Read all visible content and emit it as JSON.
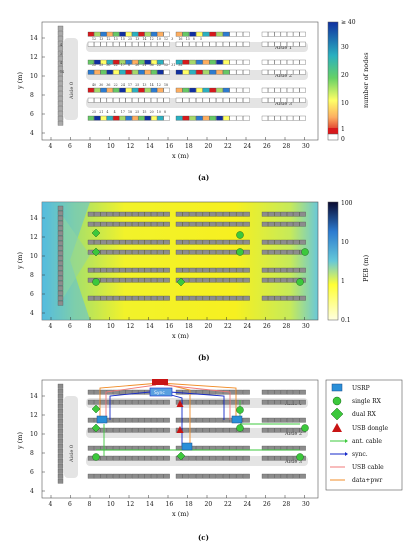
{
  "panel_a": {
    "caption": "(a)",
    "xlabel": "x (m)",
    "ylabel": "y (m)",
    "xticks": [
      "4",
      "6",
      "8",
      "10",
      "12",
      "14",
      "16",
      "18",
      "20",
      "22",
      "24",
      "26",
      "28",
      "30"
    ],
    "yticks": [
      "4",
      "6",
      "8",
      "10",
      "12",
      "14"
    ],
    "aisles": [
      "Aisle 0",
      "Aisle 1",
      "Aisle 2",
      "Aisle 3"
    ],
    "colorbar": {
      "label": "number of nodes",
      "ticks": [
        "≥ 40",
        "30",
        "20",
        "10",
        "1",
        "0"
      ]
    },
    "row1_labels": [
      "12",
      "13",
      "12",
      "13",
      "15",
      "25",
      "13",
      "14",
      "12",
      "10",
      "12",
      "3",
      "16",
      "13",
      "8",
      "5"
    ],
    "row2_labels": [
      "22",
      "25",
      "30",
      "22",
      "17",
      "8",
      "20",
      "21",
      "36",
      "22",
      "12",
      "31",
      "32"
    ],
    "row3_labels": [
      "40",
      "30",
      "36",
      "22",
      "24",
      "17",
      "25",
      "13",
      "14",
      "12",
      "18"
    ],
    "row4_labels": [
      "25",
      "21",
      "4",
      "4",
      "17",
      "18",
      "25",
      "15",
      "20",
      "10",
      "8"
    ],
    "vertical_labels": [
      "4",
      "3",
      "4",
      "14"
    ]
  },
  "panel_b": {
    "caption": "(b)",
    "xlabel": "x (m)",
    "ylabel": "y (m)",
    "xticks": [
      "4",
      "6",
      "8",
      "10",
      "12",
      "14",
      "16",
      "18",
      "20",
      "22",
      "24",
      "26",
      "28",
      "30"
    ],
    "yticks": [
      "4",
      "6",
      "8",
      "10",
      "12",
      "14"
    ],
    "colorbar": {
      "label": "PEB (m)",
      "ticks": [
        "100",
        "10",
        "1",
        "0.1"
      ]
    }
  },
  "panel_c": {
    "caption": "(c)",
    "xlabel": "x (m)",
    "ylabel": "y (m)",
    "xticks": [
      "4",
      "6",
      "8",
      "10",
      "12",
      "14",
      "16",
      "18",
      "20",
      "22",
      "24",
      "26",
      "28",
      "30"
    ],
    "yticks": [
      "4",
      "6",
      "8",
      "10",
      "12",
      "14"
    ],
    "aisles": [
      "Aisle 0",
      "Aisle 1",
      "Aisle 2",
      "Aisle 3"
    ],
    "sync_label": "Sync",
    "legend": [
      "USRP",
      "single RX",
      "dual RX",
      "USB dongle",
      "ant. cable",
      "sync.",
      "USB cable",
      "data+pwr"
    ],
    "colors": {
      "usrp": "#2a8fd8",
      "rx": "#3cc83c",
      "dongle": "#c81414",
      "ant": "#3cc83c",
      "sync": "#1428c8",
      "usb": "#f07878",
      "data": "#f08c28"
    }
  }
}
